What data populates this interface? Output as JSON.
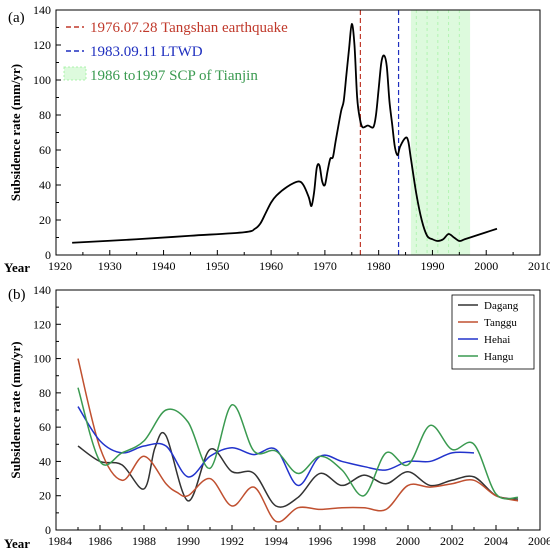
{
  "chart_data": [
    {
      "panel": "(a)",
      "type": "line",
      "ylabel": "Subsidence rate (mm/yr)",
      "xlabel": "Year",
      "xlim": [
        1920,
        2010
      ],
      "ylim": [
        0,
        140
      ],
      "xticks": [
        1920,
        1930,
        1940,
        1950,
        1960,
        1970,
        1980,
        1990,
        2000,
        2010
      ],
      "yticks": [
        0,
        20,
        40,
        60,
        80,
        100,
        120,
        140
      ],
      "x_minor_ticks": true,
      "grid": false,
      "legend_position": "top-left",
      "series": [
        {
          "color": "#000000",
          "points": [
            [
              1923,
              7
            ],
            [
              1935,
              9
            ],
            [
              1945,
              11
            ],
            [
              1955,
              13
            ],
            [
              1957,
              15
            ],
            [
              1958,
              18
            ],
            [
              1959,
              24
            ],
            [
              1960,
              30
            ],
            [
              1961,
              34
            ],
            [
              1963,
              39
            ],
            [
              1965,
              42
            ],
            [
              1966,
              40
            ],
            [
              1967,
              33
            ],
            [
              1967.5,
              28
            ],
            [
              1968,
              36
            ],
            [
              1968.5,
              50
            ],
            [
              1969,
              51
            ],
            [
              1969.5,
              42
            ],
            [
              1970,
              40
            ],
            [
              1970.5,
              48
            ],
            [
              1971,
              55
            ],
            [
              1971.5,
              56
            ],
            [
              1972,
              65
            ],
            [
              1973,
              82
            ],
            [
              1973.5,
              88
            ],
            [
              1974,
              103
            ],
            [
              1974.5,
              118
            ],
            [
              1975,
              132
            ],
            [
              1975.5,
              120
            ],
            [
              1976,
              90
            ],
            [
              1976.5,
              78
            ],
            [
              1977,
              73
            ],
            [
              1978,
              74
            ],
            [
              1979,
              73
            ],
            [
              1979.5,
              80
            ],
            [
              1980,
              95
            ],
            [
              1980.5,
              110
            ],
            [
              1981,
              114
            ],
            [
              1981.5,
              108
            ],
            [
              1982,
              88
            ],
            [
              1982.5,
              75
            ],
            [
              1983,
              62
            ],
            [
              1983.5,
              57
            ],
            [
              1984,
              62
            ],
            [
              1985,
              67
            ],
            [
              1985.5,
              65
            ],
            [
              1986,
              55
            ],
            [
              1987,
              35
            ],
            [
              1988,
              20
            ],
            [
              1989,
              11
            ],
            [
              1990,
              9
            ],
            [
              1991,
              8
            ],
            [
              1992,
              9
            ],
            [
              1993,
              12
            ],
            [
              1994,
              10
            ],
            [
              1995,
              8
            ],
            [
              1996,
              9
            ],
            [
              1998,
              11
            ],
            [
              2000,
              13
            ],
            [
              2002,
              15
            ]
          ]
        }
      ],
      "vlines": [
        {
          "x": 1976.6,
          "color": "#c0392b",
          "dash": "dashed",
          "label": "1976.07.28 Tangshan earthquake"
        },
        {
          "x": 1983.7,
          "color": "#1f2fbf",
          "dash": "dashed",
          "label": "1983.09.11 LTWD"
        }
      ],
      "vspan": {
        "x0": 1986,
        "x1": 1997,
        "color": "#90ee90",
        "label": "1986 to1997  SCP of Tianjin"
      }
    },
    {
      "panel": "(b)",
      "type": "line",
      "ylabel": "Subsidence rate (mm/yr)",
      "xlabel": "Year",
      "xlim": [
        1984,
        2006
      ],
      "ylim": [
        0,
        140
      ],
      "xticks": [
        1984,
        1986,
        1988,
        1990,
        1992,
        1994,
        1996,
        1998,
        2000,
        2002,
        2004,
        2006
      ],
      "yticks": [
        0,
        20,
        40,
        60,
        80,
        100,
        120,
        140
      ],
      "x_minor_ticks": true,
      "grid": false,
      "legend_position": "top-right",
      "series": [
        {
          "name": "Dagang",
          "color": "#333333",
          "points": [
            [
              1985,
              49
            ],
            [
              1986,
              40
            ],
            [
              1987,
              38
            ],
            [
              1988,
              24
            ],
            [
              1988.5,
              48
            ],
            [
              1989,
              55
            ],
            [
              1990,
              17
            ],
            [
              1991,
              47
            ],
            [
              1992,
              34
            ],
            [
              1993,
              33
            ],
            [
              1994,
              14
            ],
            [
              1995,
              19
            ],
            [
              1996,
              33
            ],
            [
              1997,
              26
            ],
            [
              1998,
              32
            ],
            [
              1999,
              27
            ],
            [
              2000,
              34
            ],
            [
              2001,
              26
            ],
            [
              2002,
              29
            ],
            [
              2003,
              31
            ],
            [
              2004,
              20
            ],
            [
              2005,
              18
            ]
          ]
        },
        {
          "name": "Tanggu",
          "color": "#c05030",
          "points": [
            [
              1985,
              100
            ],
            [
              1986,
              48
            ],
            [
              1987,
              29
            ],
            [
              1988,
              43
            ],
            [
              1989,
              27
            ],
            [
              1989.5,
              22
            ],
            [
              1990,
              20
            ],
            [
              1991,
              30
            ],
            [
              1992,
              14
            ],
            [
              1993,
              25
            ],
            [
              1994,
              5
            ],
            [
              1995,
              13
            ],
            [
              1996,
              12
            ],
            [
              1997,
              13
            ],
            [
              1998,
              13
            ],
            [
              1999,
              12
            ],
            [
              2000,
              26
            ],
            [
              2001,
              25
            ],
            [
              2002,
              27
            ],
            [
              2003,
              29
            ],
            [
              2004,
              20
            ],
            [
              2005,
              17
            ]
          ]
        },
        {
          "name": "Hehai",
          "color": "#2233cc",
          "points": [
            [
              1985,
              72
            ],
            [
              1986,
              52
            ],
            [
              1987,
              45
            ],
            [
              1988,
              49
            ],
            [
              1989,
              49
            ],
            [
              1990,
              31
            ],
            [
              1991,
              43
            ],
            [
              1992,
              48
            ],
            [
              1993,
              44
            ],
            [
              1994,
              47
            ],
            [
              1995,
              26
            ],
            [
              1996,
              43
            ],
            [
              1997,
              40
            ],
            [
              1998,
              37
            ],
            [
              1999,
              35
            ],
            [
              2000,
              40
            ],
            [
              2001,
              40
            ],
            [
              2002,
              45
            ],
            [
              2003,
              45
            ]
          ]
        },
        {
          "name": "Hangu",
          "color": "#3a9a50",
          "points": [
            [
              1985,
              83
            ],
            [
              1986,
              40
            ],
            [
              1987,
              45
            ],
            [
              1988,
              52
            ],
            [
              1989,
              70
            ],
            [
              1990,
              63
            ],
            [
              1991,
              36
            ],
            [
              1992,
              73
            ],
            [
              1993,
              46
            ],
            [
              1994,
              46
            ],
            [
              1995,
              33
            ],
            [
              1996,
              43
            ],
            [
              1997,
              35
            ],
            [
              1998,
              20
            ],
            [
              1999,
              45
            ],
            [
              2000,
              38
            ],
            [
              2001,
              61
            ],
            [
              2002,
              47
            ],
            [
              2003,
              50
            ],
            [
              2004,
              21
            ],
            [
              2005,
              19
            ]
          ]
        }
      ]
    }
  ]
}
